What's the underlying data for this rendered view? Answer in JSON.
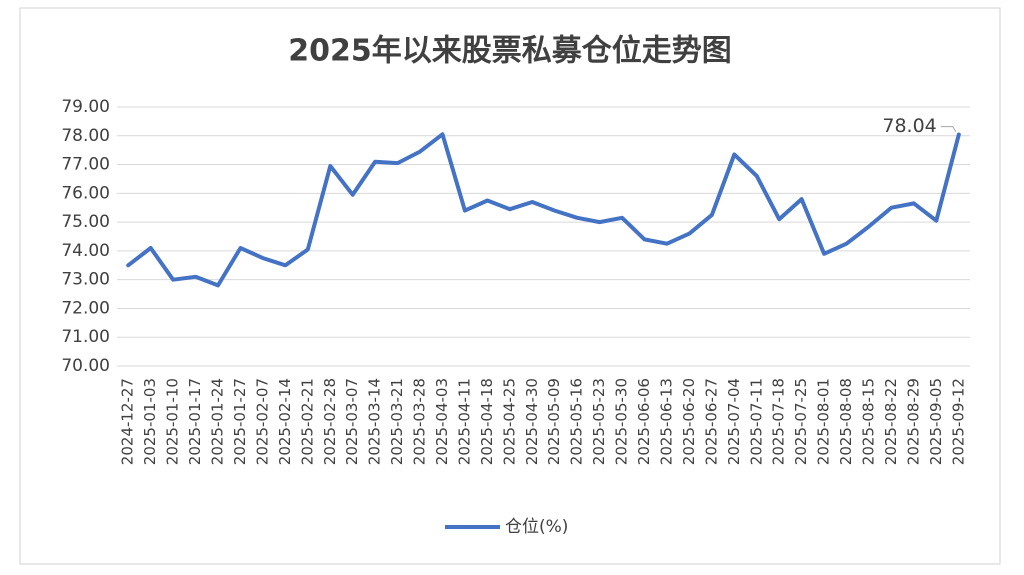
{
  "chart_data": {
    "type": "line",
    "title": "2025年以来股票私募仓位走势图",
    "categories": [
      "2024-12-27",
      "2025-01-03",
      "2025-01-10",
      "2025-01-17",
      "2025-01-24",
      "2025-01-27",
      "2025-02-07",
      "2025-02-14",
      "2025-02-21",
      "2025-02-28",
      "2025-03-07",
      "2025-03-14",
      "2025-03-21",
      "2025-03-28",
      "2025-04-03",
      "2025-04-11",
      "2025-04-18",
      "2025-04-25",
      "2025-04-30",
      "2025-05-09",
      "2025-05-16",
      "2025-05-23",
      "2025-05-30",
      "2025-06-06",
      "2025-06-13",
      "2025-06-20",
      "2025-06-27",
      "2025-07-04",
      "2025-07-11",
      "2025-07-18",
      "2025-07-25",
      "2025-08-01",
      "2025-08-08",
      "2025-08-15",
      "2025-08-22",
      "2025-08-29",
      "2025-09-05",
      "2025-09-12"
    ],
    "series": [
      {
        "name": "仓位(%)",
        "color": "#4472c4",
        "values": [
          73.5,
          74.1,
          73.0,
          73.1,
          72.8,
          74.1,
          73.75,
          73.5,
          74.05,
          76.95,
          75.95,
          77.1,
          77.05,
          77.45,
          78.05,
          75.4,
          75.75,
          75.45,
          75.7,
          75.4,
          75.15,
          75.0,
          75.15,
          74.4,
          74.25,
          74.6,
          75.25,
          77.35,
          76.6,
          75.1,
          75.8,
          73.9,
          74.25,
          74.85,
          75.5,
          75.65,
          75.05,
          78.04
        ]
      }
    ],
    "ylim": [
      70,
      79
    ],
    "yticks": [
      {
        "value": 70,
        "label": "70.00"
      },
      {
        "value": 71,
        "label": "71.00"
      },
      {
        "value": 72,
        "label": "72.00"
      },
      {
        "value": 73,
        "label": "73.00"
      },
      {
        "value": 74,
        "label": "74.00"
      },
      {
        "value": 75,
        "label": "75.00"
      },
      {
        "value": 76,
        "label": "76.00"
      },
      {
        "value": 77,
        "label": "77.00"
      },
      {
        "value": 78,
        "label": "78.00"
      },
      {
        "value": 79,
        "label": "79.00"
      }
    ],
    "grid": true,
    "legend": "bottom"
  }
}
